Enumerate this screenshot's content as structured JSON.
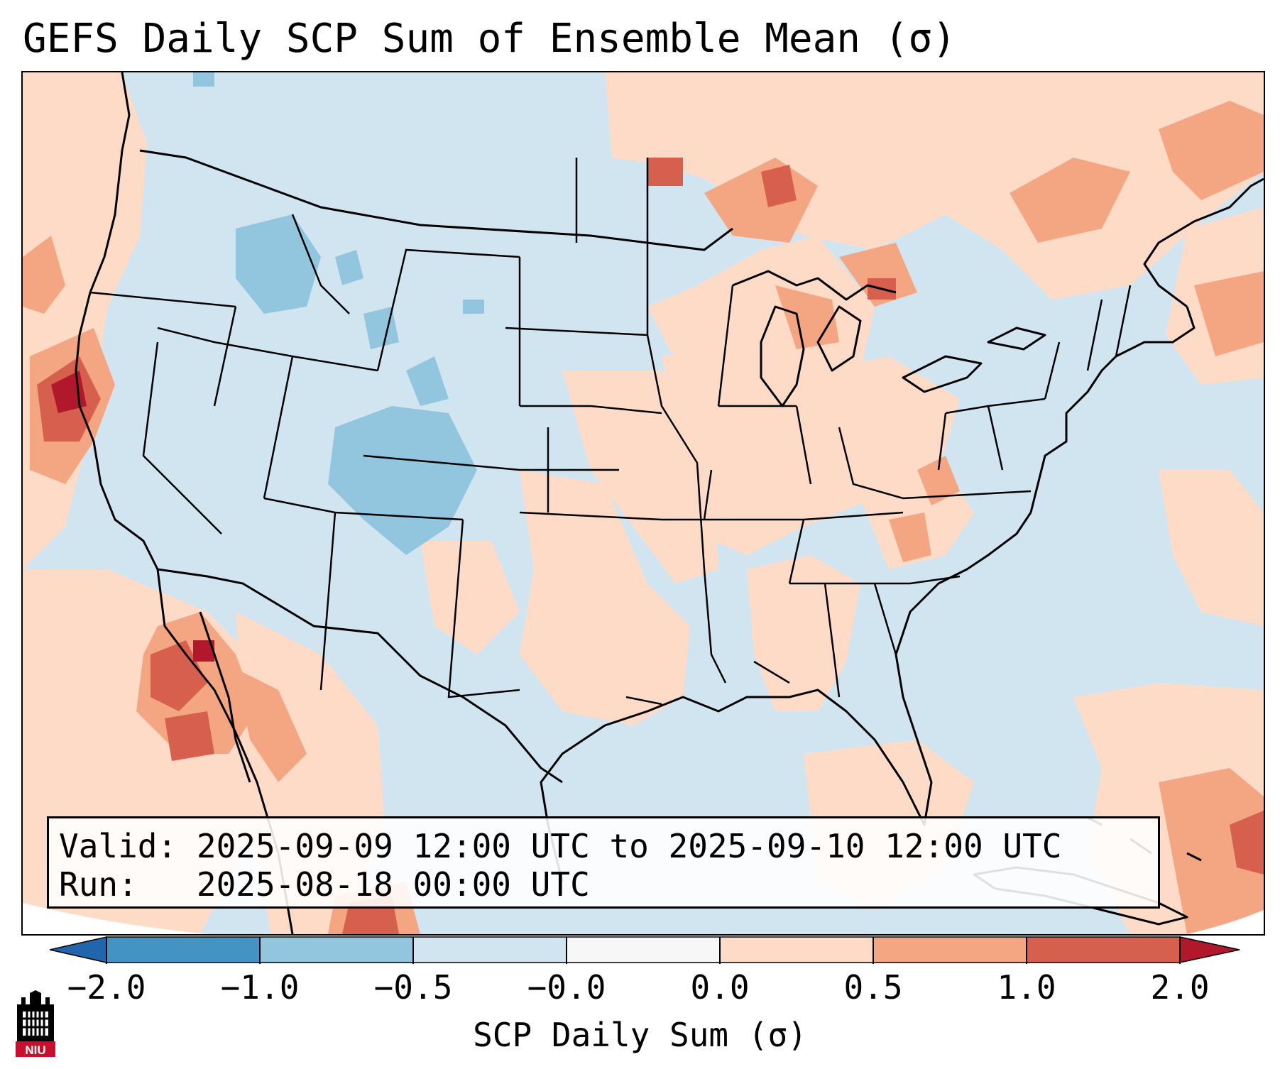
{
  "title": "GEFS Daily SCP Sum of Ensemble Mean (σ)",
  "info": {
    "valid_label": "Valid:",
    "valid_value": "2025-09-09 12:00 UTC to 2025-09-10 12:00 UTC",
    "run_label": "Run:",
    "run_value": "2025-08-18 00:00 UTC"
  },
  "colorbar": {
    "label": "SCP Daily Sum (σ)",
    "ticks": [
      "−2.0",
      "−1.0",
      "−0.5",
      "−0.0",
      "0.0",
      "0.5",
      "1.0",
      "2.0"
    ],
    "bin_colors": [
      "#2166ac",
      "#4393c3",
      "#92c5de",
      "#d1e5f0",
      "#f7f7f7",
      "#fddbc7",
      "#f4a582",
      "#d6604d",
      "#b2182b"
    ]
  },
  "logo": {
    "text": "NIU",
    "icon": "niu-castle-logo"
  },
  "colors": {
    "map_background": "#d1e5f0",
    "positive_light": "#fddbc7",
    "positive_mid": "#f4a582",
    "positive_strong": "#d6604d",
    "positive_max": "#b2182b",
    "negative_mid": "#92c5de",
    "niu_red": "#c8102e"
  }
}
